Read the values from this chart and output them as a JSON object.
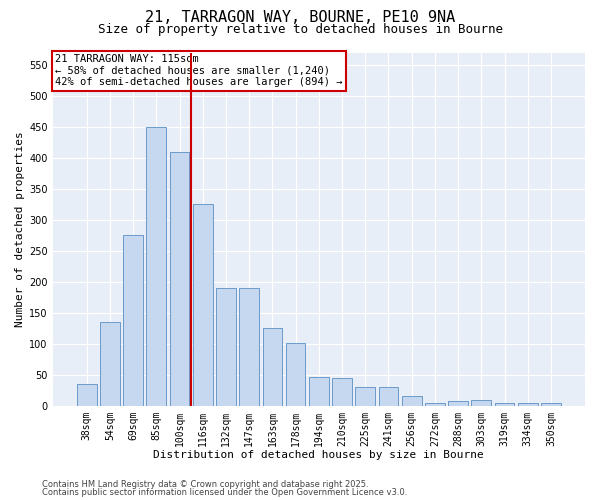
{
  "title_line1": "21, TARRAGON WAY, BOURNE, PE10 9NA",
  "title_line2": "Size of property relative to detached houses in Bourne",
  "xlabel": "Distribution of detached houses by size in Bourne",
  "ylabel": "Number of detached properties",
  "categories": [
    "38sqm",
    "54sqm",
    "69sqm",
    "85sqm",
    "100sqm",
    "116sqm",
    "132sqm",
    "147sqm",
    "163sqm",
    "178sqm",
    "194sqm",
    "210sqm",
    "225sqm",
    "241sqm",
    "256sqm",
    "272sqm",
    "288sqm",
    "303sqm",
    "319sqm",
    "334sqm",
    "350sqm"
  ],
  "values": [
    35,
    135,
    275,
    450,
    410,
    325,
    190,
    190,
    125,
    102,
    46,
    45,
    30,
    30,
    15,
    5,
    8,
    10,
    5,
    4,
    5
  ],
  "bar_color": "#c5d8f0",
  "bar_edge_color": "#5a8fc2",
  "vline_color": "#cc0000",
  "vline_x": 5.0,
  "annotation_line1": "21 TARRAGON WAY: 115sqm",
  "annotation_line2": "← 58% of detached houses are smaller (1,240)",
  "annotation_line3": "42% of semi-detached houses are larger (894) →",
  "annotation_box_edge_color": "#cc0000",
  "ylim": [
    0,
    570
  ],
  "yticks": [
    0,
    50,
    100,
    150,
    200,
    250,
    300,
    350,
    400,
    450,
    500,
    550
  ],
  "bg_color": "#e8eef7",
  "title_fontsize": 11,
  "subtitle_fontsize": 9,
  "axis_label_fontsize": 8,
  "tick_fontsize": 7,
  "annotation_fontsize": 7.5,
  "footer_fontsize": 6,
  "footer_line1": "Contains HM Land Registry data © Crown copyright and database right 2025.",
  "footer_line2": "Contains public sector information licensed under the Open Government Licence v3.0."
}
